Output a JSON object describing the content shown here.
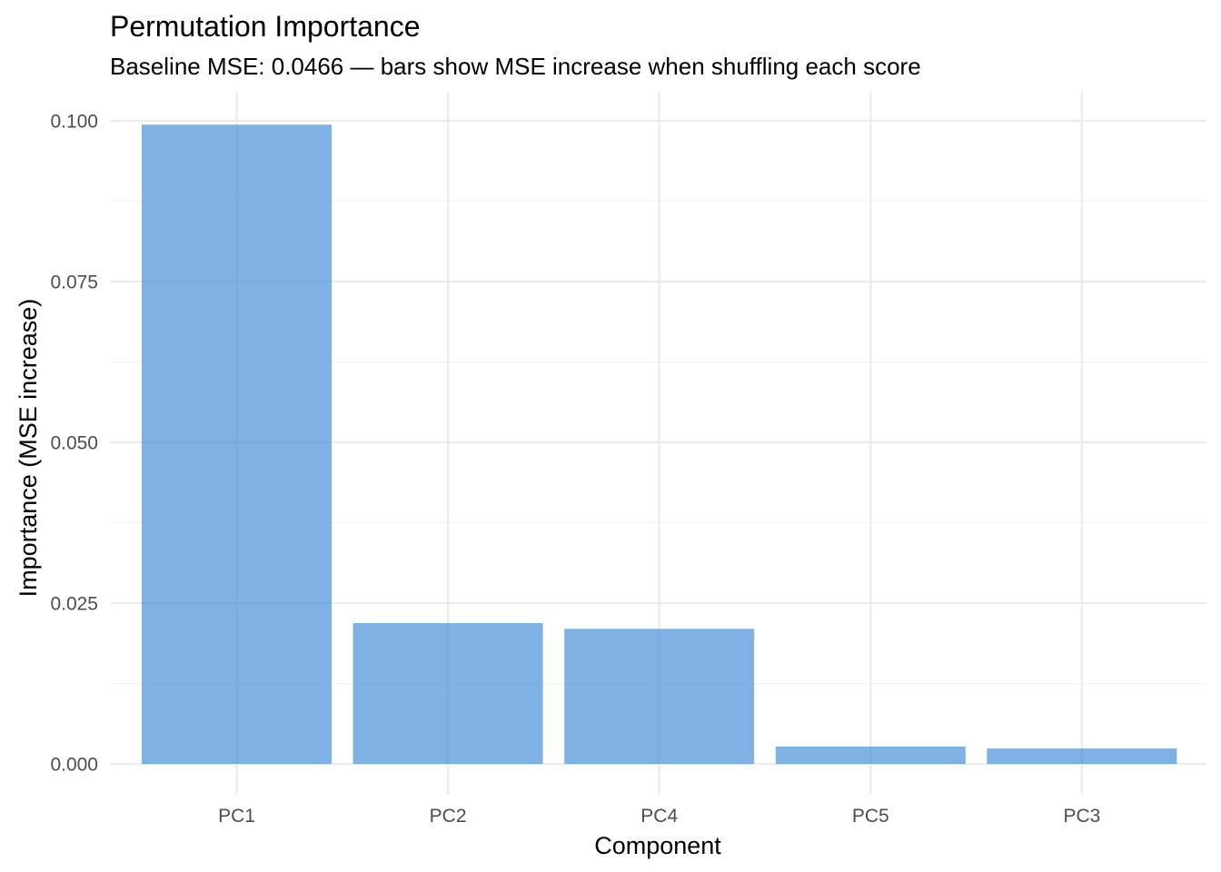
{
  "chart_data": {
    "type": "bar",
    "title": "Permutation Importance",
    "subtitle": "Baseline MSE: 0.0466 — bars show MSE increase when shuffling each score",
    "xlabel": "Component",
    "ylabel": "Importance (MSE increase)",
    "categories": [
      "PC1",
      "PC2",
      "PC4",
      "PC5",
      "PC3"
    ],
    "values": [
      0.0994,
      0.0219,
      0.021,
      0.0027,
      0.0024
    ],
    "ylim": [
      0,
      0.1
    ],
    "yticks": [
      0.0,
      0.025,
      0.05,
      0.075,
      0.1
    ],
    "ytick_labels": [
      "0.000",
      "0.025",
      "0.050",
      "0.075",
      "0.100"
    ],
    "bar_color": "#4a90d9",
    "bar_opacity": 0.7,
    "grid": true,
    "legend": "none"
  }
}
